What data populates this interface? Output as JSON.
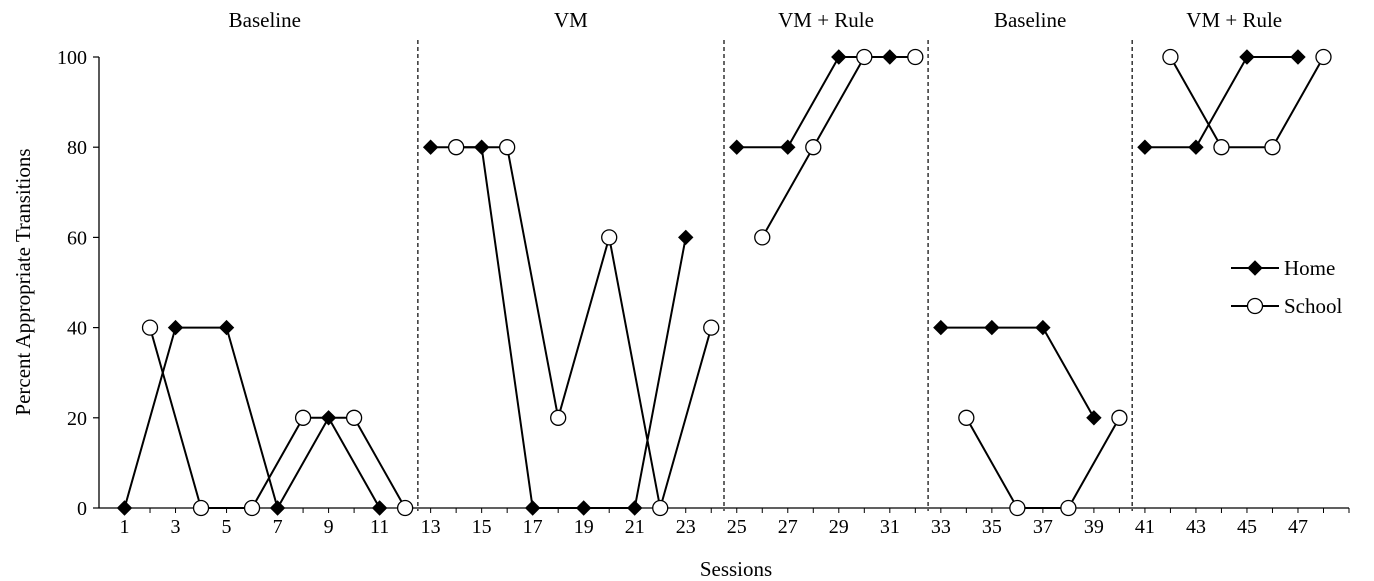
{
  "chart_data": {
    "type": "line",
    "xlabel": "Sessions",
    "ylabel": "Percent Appropriate Transitions",
    "xlim": [
      0,
      49
    ],
    "ylim": [
      0,
      100
    ],
    "y_ticks": [
      0,
      20,
      40,
      60,
      80,
      100
    ],
    "x_ticks": [
      1,
      3,
      5,
      7,
      9,
      11,
      13,
      15,
      17,
      19,
      21,
      23,
      25,
      27,
      29,
      31,
      33,
      35,
      37,
      39,
      41,
      43,
      45,
      47
    ],
    "legend_position": "right",
    "phase_lines": [
      12.5,
      24.5,
      32.5,
      40.5
    ],
    "phases": [
      {
        "label": "Baseline",
        "center": 6.5
      },
      {
        "label": "VM",
        "center": 18.5
      },
      {
        "label": "VM + Rule",
        "center": 28.5
      },
      {
        "label": "Baseline",
        "center": 36.5
      },
      {
        "label": "VM + Rule",
        "center": 44.5
      }
    ],
    "series": [
      {
        "name": "Home",
        "marker": "diamond",
        "segments": [
          [
            [
              1,
              0
            ],
            [
              3,
              40
            ],
            [
              5,
              40
            ],
            [
              7,
              0
            ],
            [
              9,
              20
            ],
            [
              11,
              0
            ]
          ],
          [
            [
              13,
              80
            ],
            [
              15,
              80
            ],
            [
              17,
              0
            ],
            [
              19,
              0
            ],
            [
              21,
              0
            ],
            [
              23,
              60
            ]
          ],
          [
            [
              25,
              80
            ],
            [
              27,
              80
            ],
            [
              29,
              100
            ],
            [
              31,
              100
            ]
          ],
          [
            [
              33,
              40
            ],
            [
              35,
              40
            ],
            [
              37,
              40
            ],
            [
              39,
              20
            ]
          ],
          [
            [
              41,
              80
            ],
            [
              43,
              80
            ],
            [
              45,
              100
            ],
            [
              47,
              100
            ]
          ]
        ]
      },
      {
        "name": "School",
        "marker": "circle",
        "segments": [
          [
            [
              2,
              40
            ],
            [
              4,
              0
            ],
            [
              6,
              0
            ],
            [
              8,
              20
            ],
            [
              10,
              20
            ],
            [
              12,
              0
            ]
          ],
          [
            [
              14,
              80
            ],
            [
              16,
              80
            ],
            [
              18,
              20
            ],
            [
              20,
              60
            ],
            [
              22,
              0
            ],
            [
              24,
              40
            ]
          ],
          [
            [
              26,
              60
            ],
            [
              28,
              80
            ],
            [
              30,
              100
            ],
            [
              32,
              100
            ]
          ],
          [
            [
              34,
              20
            ],
            [
              36,
              0
            ],
            [
              38,
              0
            ],
            [
              40,
              20
            ]
          ],
          [
            [
              42,
              100
            ],
            [
              44,
              80
            ],
            [
              46,
              80
            ],
            [
              48,
              100
            ]
          ]
        ]
      }
    ]
  }
}
